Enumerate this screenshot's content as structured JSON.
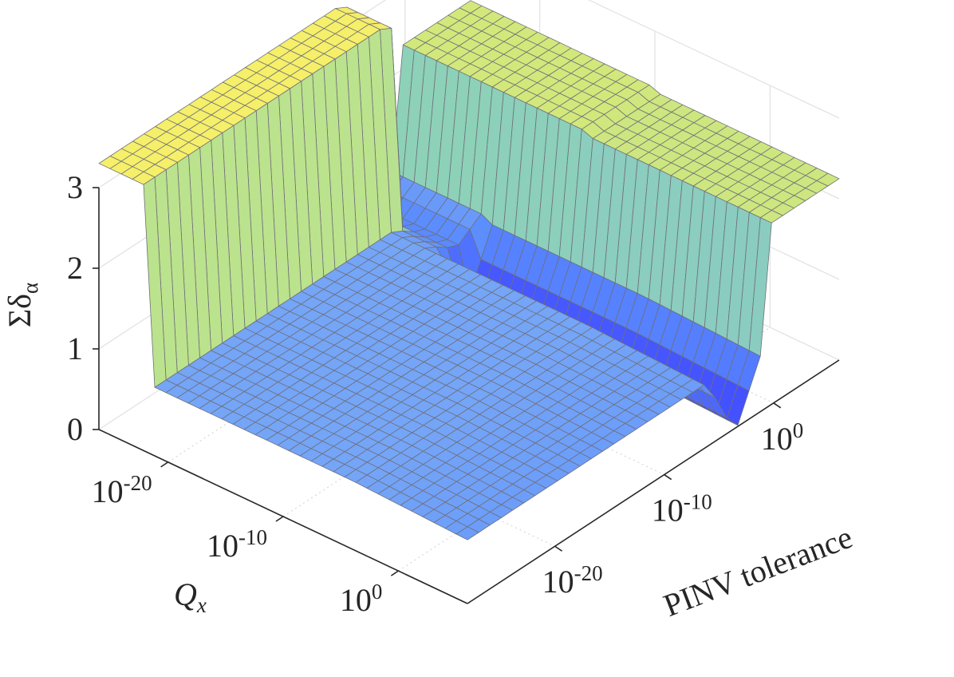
{
  "chart_data": {
    "type": "surface",
    "title": "",
    "xlabel": "PINV tolerance",
    "ylabel": "Q",
    "ylabel_subscript": "x",
    "zlabel": "Σδ",
    "zlabel_subscript": "α",
    "x_scale": "log",
    "y_scale": "log",
    "x_log10_range": [
      -28,
      6
    ],
    "y_log10_range": [
      -26,
      6
    ],
    "zlim": [
      0,
      3
    ],
    "x_ticks": [
      {
        "base": "10",
        "exp": "-20",
        "log10": -20
      },
      {
        "base": "10",
        "exp": "-10",
        "log10": -10
      },
      {
        "base": "10",
        "exp": "0",
        "log10": 0
      }
    ],
    "y_ticks": [
      {
        "base": "10",
        "exp": "-20",
        "log10": -20
      },
      {
        "base": "10",
        "exp": "-10",
        "log10": -10
      },
      {
        "base": "10",
        "exp": "0",
        "log10": 0
      }
    ],
    "z_ticks": [
      "0",
      "1",
      "2",
      "3"
    ],
    "grid": true,
    "colormap": [
      "#3a3aff",
      "#5a8aff",
      "#78aaf4",
      "#8fd6b0",
      "#d3e87a",
      "#f5ef6a",
      "#e8c87a"
    ],
    "surface_description": "Sigma-delta_alpha over log10(PINV tolerance) and log10(Q_x); about 1 over most of the domain, about 3 for small Q_x, dips near 0 around tolerance 1e-5 and plateaus near 2.3 for large tolerance."
  }
}
